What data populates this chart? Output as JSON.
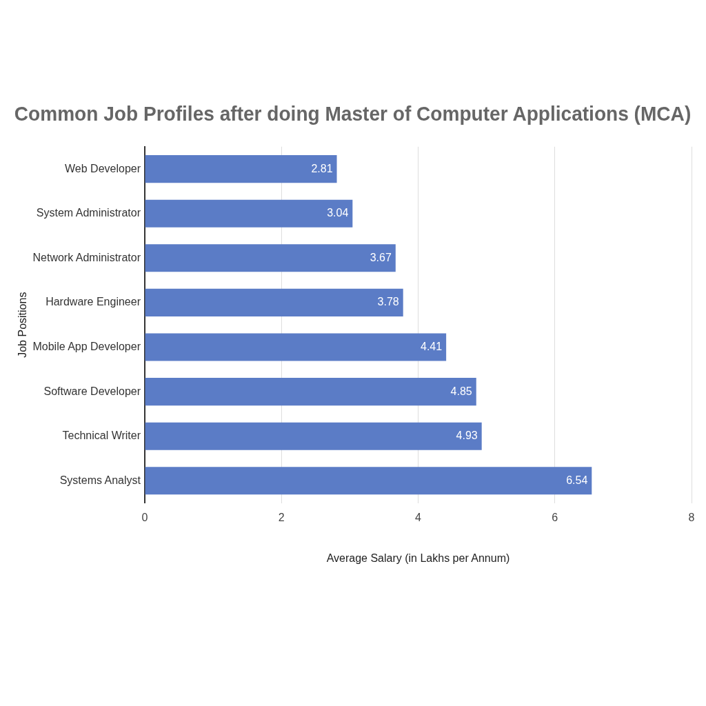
{
  "chart_data": {
    "type": "bar",
    "orientation": "horizontal",
    "title": "Common Job Profiles after doing Master of Computer Applications (MCA)",
    "xlabel": "Average Salary (in Lakhs per Annum)",
    "ylabel": "Job Positions",
    "categories": [
      "Web Developer",
      "System Administrator",
      "Network Administrator",
      "Hardware Engineer",
      "Mobile App Developer",
      "Software Developer",
      "Technical Writer",
      "Systems Analyst"
    ],
    "values": [
      2.81,
      3.04,
      3.67,
      3.78,
      4.41,
      4.85,
      4.93,
      6.54
    ],
    "color": "#5b7cc6",
    "xlim": [
      0,
      8
    ],
    "xticks": [
      0,
      2,
      4,
      6,
      8
    ],
    "grid": "x",
    "data_labels": true
  }
}
